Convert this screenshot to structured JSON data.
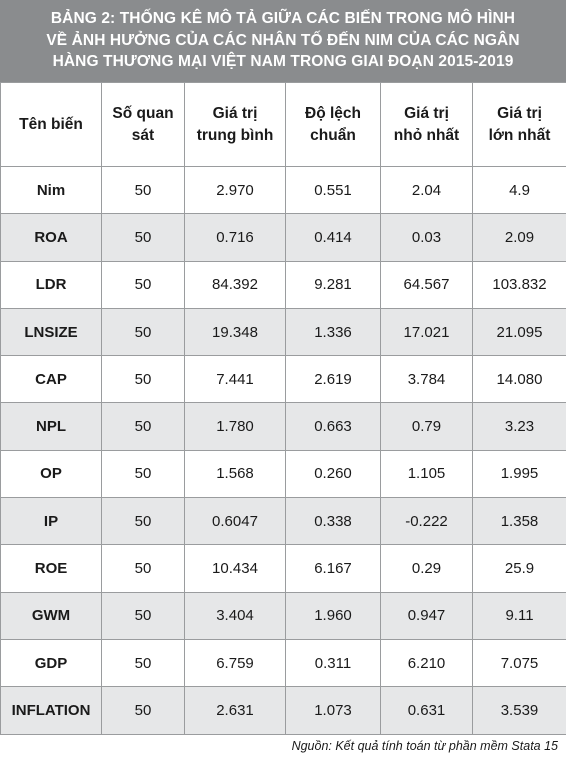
{
  "title": {
    "lines": [
      "BẢNG 2: THỐNG KÊ MÔ TẢ GIỮA CÁC BIẾN TRONG MÔ HÌNH",
      "VỀ ẢNH HƯỞNG CỦA CÁC NHÂN TỐ ĐẾN NIM CỦA CÁC NGÂN",
      "HÀNG THƯƠNG MẠI VIỆT NAM TRONG GIAI ĐOẠN 2015-2019"
    ]
  },
  "headers": [
    [
      "Tên biến"
    ],
    [
      "Số quan",
      "sát"
    ],
    [
      "Giá trị",
      "trung bình"
    ],
    [
      "Độ lệch",
      "chuẩn"
    ],
    [
      "Giá trị",
      "nhỏ nhất"
    ],
    [
      "Giá trị",
      "lớn nhất"
    ]
  ],
  "rows": [
    [
      "Nim",
      "50",
      "2.970",
      "0.551",
      "2.04",
      "4.9"
    ],
    [
      "ROA",
      "50",
      "0.716",
      "0.414",
      "0.03",
      "2.09"
    ],
    [
      "LDR",
      "50",
      "84.392",
      "9.281",
      "64.567",
      "103.832"
    ],
    [
      "LNSIZE",
      "50",
      "19.348",
      "1.336",
      "17.021",
      "21.095"
    ],
    [
      "CAP",
      "50",
      "7.441",
      "2.619",
      "3.784",
      "14.080"
    ],
    [
      "NPL",
      "50",
      "1.780",
      "0.663",
      "0.79",
      "3.23"
    ],
    [
      "OP",
      "50",
      "1.568",
      "0.260",
      "1.105",
      "1.995"
    ],
    [
      "IP",
      "50",
      "0.6047",
      "0.338",
      "-0.222",
      "1.358"
    ],
    [
      "ROE",
      "50",
      "10.434",
      "6.167",
      "0.29",
      "25.9"
    ],
    [
      "GWM",
      "50",
      "3.404",
      "1.960",
      "0.947",
      "9.11"
    ],
    [
      "GDP",
      "50",
      "6.759",
      "0.311",
      "6.210",
      "7.075"
    ],
    [
      "INFLATION",
      "50",
      "2.631",
      "1.073",
      "0.631",
      "3.539"
    ]
  ],
  "source": "Nguồn: Kết quả tính toán từ phần mềm Stata 15"
}
